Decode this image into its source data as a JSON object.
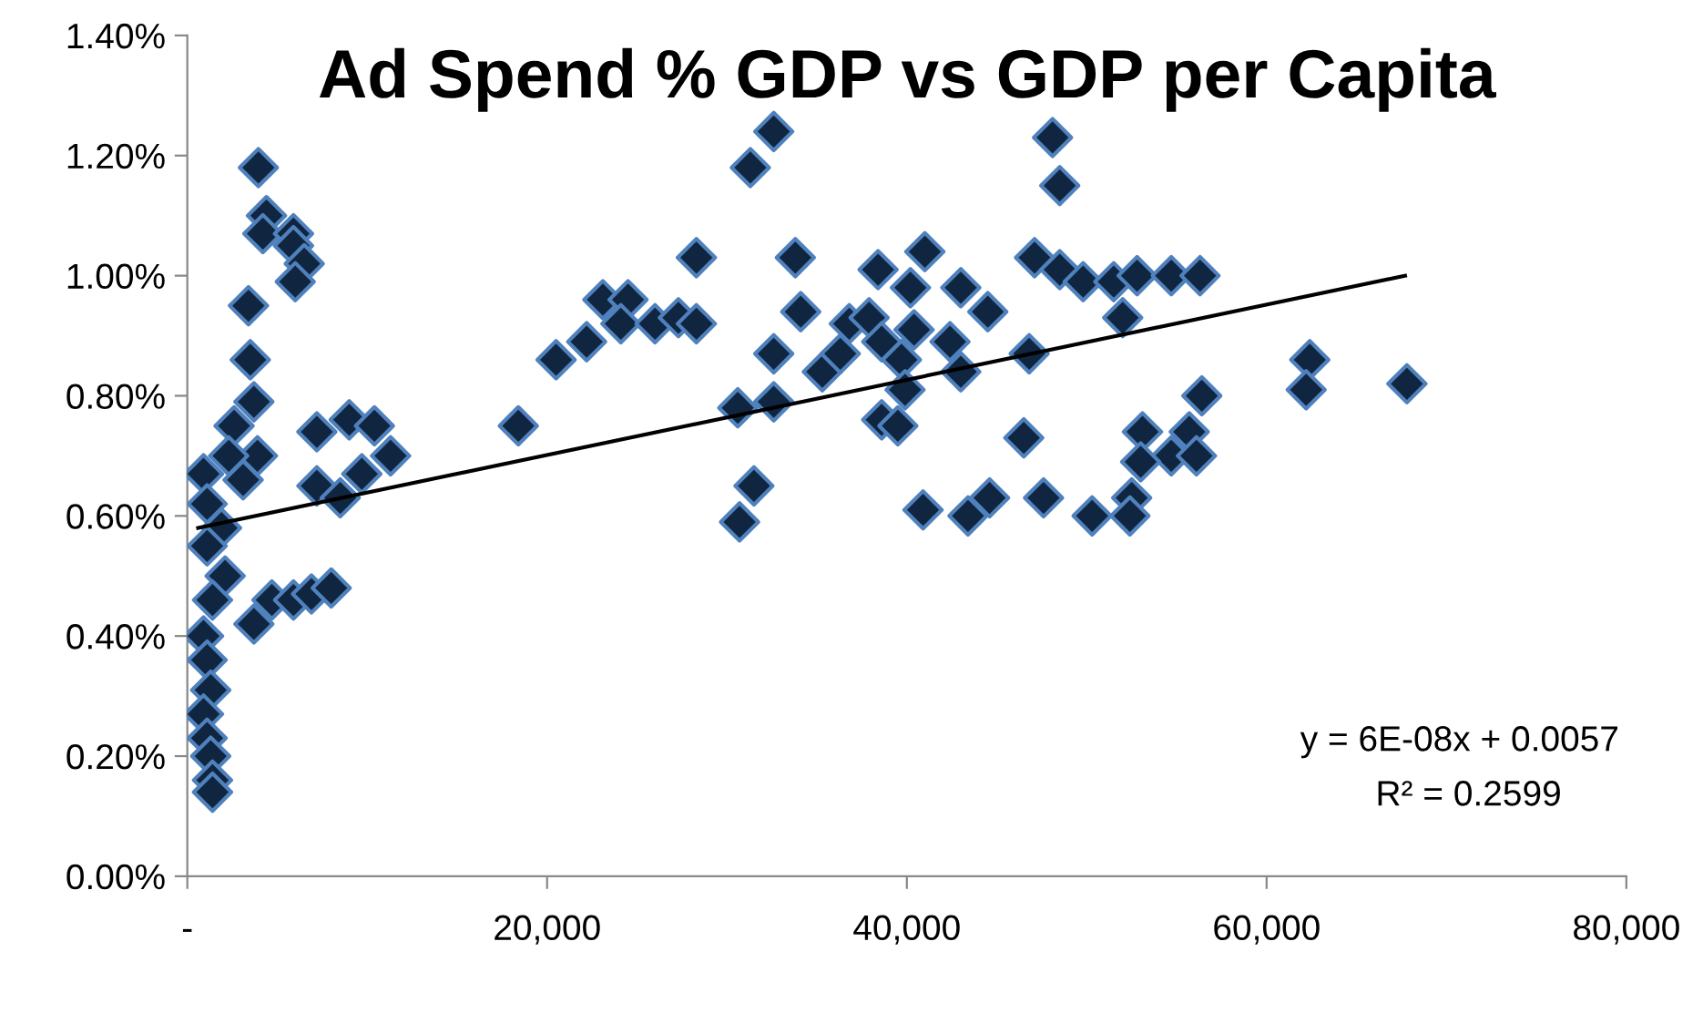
{
  "chart_data": {
    "type": "scatter",
    "title": "Ad Spend % GDP vs GDP per Capita",
    "xlim": [
      0,
      80000
    ],
    "xticks": [
      {
        "value": 0,
        "label": "-"
      },
      {
        "value": 20000,
        "label": "20,000"
      },
      {
        "value": 40000,
        "label": "40,000"
      },
      {
        "value": 60000,
        "label": "60,000"
      },
      {
        "value": 80000,
        "label": "80,000"
      }
    ],
    "ylim": [
      0,
      1.4
    ],
    "yticks": [
      {
        "value": 0,
        "label": "0.00%"
      },
      {
        "value": 0.2,
        "label": "0.20%"
      },
      {
        "value": 0.4,
        "label": "0.40%"
      },
      {
        "value": 0.6,
        "label": "0.60%"
      },
      {
        "value": 0.8,
        "label": "0.80%"
      },
      {
        "value": 1.0,
        "label": "1.00%"
      },
      {
        "value": 1.2,
        "label": "1.20%"
      },
      {
        "value": 1.4,
        "label": "1.40%"
      }
    ],
    "grid": false,
    "legend": false,
    "marker": "diamond",
    "series": [
      {
        "color": "#10253f",
        "x": [
          3950,
          4400,
          4200,
          5900,
          5900,
          6500,
          6000,
          3400,
          3500,
          3700,
          2600,
          3900,
          900,
          2300,
          3100,
          7200,
          9000,
          10400,
          11300,
          7200,
          8500,
          9700,
          1100,
          1900,
          1100,
          2100,
          1400,
          3700,
          4700,
          5900,
          6900,
          8000,
          900,
          1100,
          1300,
          900,
          1100,
          1300,
          1400,
          1400,
          31300,
          32600,
          28300,
          33800,
          34100,
          38400,
          41000,
          40200,
          43000,
          44500,
          47100,
          20500,
          22200,
          23100,
          24500,
          24100,
          26000,
          27300,
          28300,
          18400,
          30600,
          32600,
          32600,
          35300,
          36300,
          36800,
          37900,
          38600,
          40400,
          39700,
          42400,
          43000,
          39900,
          38600,
          39500,
          46500,
          46800,
          31500,
          30700,
          40900,
          43400,
          44600,
          47600,
          48500,
          48100,
          48500,
          49800,
          51500,
          52800,
          54700,
          56300,
          52000,
          62400,
          62200,
          67800,
          56400,
          53100,
          55700,
          54700,
          56100,
          53000,
          52500,
          50300,
          52400
        ],
        "values": [
          1.18,
          1.1,
          1.07,
          1.07,
          1.05,
          1.02,
          0.99,
          0.95,
          0.86,
          0.79,
          0.75,
          0.7,
          0.67,
          0.7,
          0.66,
          0.74,
          0.76,
          0.75,
          0.7,
          0.65,
          0.63,
          0.67,
          0.62,
          0.58,
          0.55,
          0.5,
          0.46,
          0.42,
          0.46,
          0.46,
          0.47,
          0.48,
          0.4,
          0.36,
          0.31,
          0.27,
          0.23,
          0.2,
          0.16,
          0.14,
          1.18,
          1.24,
          1.03,
          1.03,
          0.94,
          1.01,
          1.04,
          0.98,
          0.98,
          0.94,
          1.03,
          0.86,
          0.89,
          0.96,
          0.96,
          0.92,
          0.92,
          0.93,
          0.92,
          0.75,
          0.78,
          0.79,
          0.87,
          0.84,
          0.87,
          0.92,
          0.93,
          0.89,
          0.91,
          0.86,
          0.89,
          0.84,
          0.81,
          0.76,
          0.75,
          0.73,
          0.87,
          0.65,
          0.59,
          0.61,
          0.6,
          0.63,
          0.63,
          1.15,
          1.23,
          1.01,
          0.99,
          0.99,
          1.0,
          1.0,
          1.0,
          0.93,
          0.86,
          0.81,
          0.82,
          0.8,
          0.74,
          0.74,
          0.7,
          0.7,
          0.69,
          0.63,
          0.6,
          0.6
        ]
      },
      {
        "type": "line",
        "color": "#000000",
        "marker": "none",
        "line_style": "solid",
        "x": [
          600,
          67700
        ],
        "values": [
          0.58,
          1.0
        ]
      }
    ],
    "annotations": [
      "y = 6E-08x + 0.0057",
      "R² = 0.2599"
    ]
  }
}
